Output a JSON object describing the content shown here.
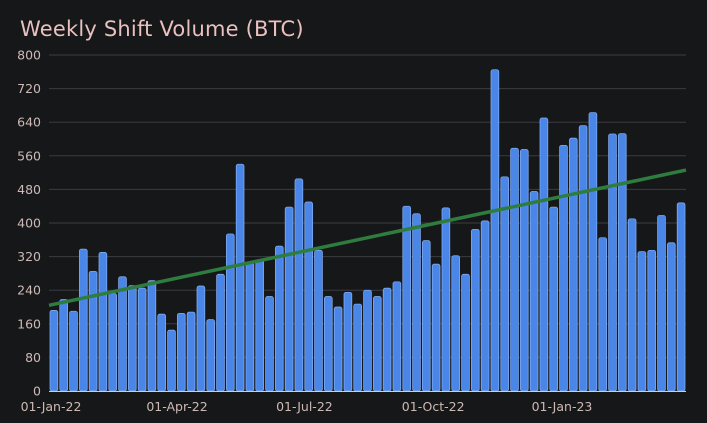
{
  "chart_data": {
    "type": "bar",
    "title": "Weekly Shift Volume (BTC)",
    "xlabel": "",
    "ylabel": "",
    "ylim": [
      0,
      800
    ],
    "yticks": [
      0,
      80,
      160,
      240,
      320,
      400,
      480,
      560,
      640,
      720,
      800
    ],
    "xtick_labels": [
      {
        "label": "01-Jan-22",
        "index": 0
      },
      {
        "label": "01-Apr-22",
        "index": 12.86
      },
      {
        "label": "01-Jul-22",
        "index": 25.86
      },
      {
        "label": "01-Oct-22",
        "index": 39
      },
      {
        "label": "01-Jan-23",
        "index": 52.14
      }
    ],
    "series": [
      {
        "name": "Weekly Shift Volume",
        "color": "#4a86e8",
        "values": [
          192,
          218,
          190,
          338,
          285,
          330,
          232,
          272,
          251,
          245,
          263,
          183,
          145,
          185,
          188,
          250,
          170,
          278,
          374,
          540,
          305,
          312,
          225,
          345,
          438,
          505,
          450,
          335,
          225,
          200,
          235,
          207,
          240,
          225,
          245,
          260,
          440,
          422,
          358,
          302,
          436,
          322,
          278,
          385,
          405,
          765,
          510,
          578,
          575,
          475,
          650,
          438,
          585,
          602,
          632,
          663,
          365,
          612,
          613,
          410,
          332,
          335,
          418,
          353,
          448
        ]
      }
    ],
    "trendline": {
      "name": "Trend",
      "color": "#2f7d3e",
      "start": 204,
      "end": 526
    },
    "grid": true,
    "legend": "none"
  }
}
